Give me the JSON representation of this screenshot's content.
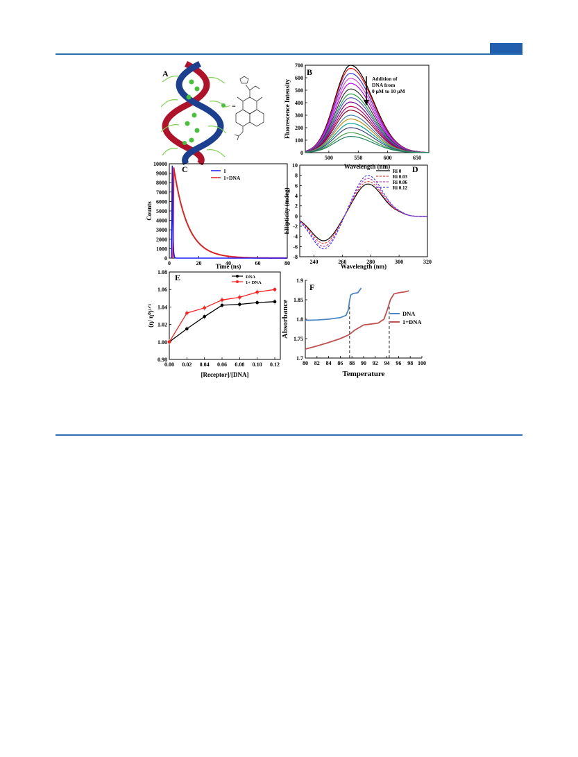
{
  "colors": {
    "rule": "#2a6db3",
    "tab": "#1f5fae"
  },
  "panels": {
    "A": {
      "label": "A",
      "equals": "=",
      "description_icon": "dna-helix-with-ligand-icon"
    },
    "B": {
      "label": "B",
      "annotation": [
        "Addition of",
        "DNA from",
        "0 μM to 10 μM"
      ]
    },
    "C": {
      "label": "C"
    },
    "D": {
      "label": "D"
    },
    "E": {
      "label": "E"
    },
    "F": {
      "label": "F"
    }
  },
  "chart_data": [
    {
      "id": "B",
      "type": "line",
      "xlabel": "Wavelength (nm)",
      "ylabel": "Fluorescence Intensity",
      "xlim": [
        460,
        670
      ],
      "ylim": [
        0,
        700
      ],
      "xticks": [
        500,
        550,
        600,
        650
      ],
      "yticks": [
        0,
        100,
        200,
        300,
        400,
        500,
        600,
        700
      ],
      "peak_x": 537,
      "series": [
        {
          "peak": 700,
          "color": "#000000"
        },
        {
          "peak": 675,
          "color": "#ff0000"
        },
        {
          "peak": 635,
          "color": "#3333ff"
        },
        {
          "peak": 595,
          "color": "#e040e0"
        },
        {
          "peak": 555,
          "color": "#c000ff"
        },
        {
          "peak": 510,
          "color": "#303030"
        },
        {
          "peak": 470,
          "color": "#20a040"
        },
        {
          "peak": 440,
          "color": "#5050c0"
        },
        {
          "peak": 405,
          "color": "#8000a0"
        },
        {
          "peak": 370,
          "color": "#c00060"
        },
        {
          "peak": 340,
          "color": "#900020"
        },
        {
          "peak": 300,
          "color": "#4080c0"
        },
        {
          "peak": 270,
          "color": "#c09000"
        },
        {
          "peak": 235,
          "color": "#00a0a0"
        },
        {
          "peak": 200,
          "color": "#404080"
        },
        {
          "peak": 160,
          "color": "#40a040"
        },
        {
          "peak": 130,
          "color": "#208060"
        }
      ]
    },
    {
      "id": "C",
      "type": "line",
      "xlabel": "Time (ns)",
      "ylabel": "Counts",
      "xlim": [
        0,
        80
      ],
      "ylim": [
        0,
        10000
      ],
      "xticks": [
        0,
        20,
        40,
        60,
        80
      ],
      "yticks": [
        0,
        1000,
        2000,
        3000,
        4000,
        5000,
        6000,
        7000,
        8000,
        9000,
        10000
      ],
      "legend_position": "top-center",
      "series": [
        {
          "name": "1",
          "color": "#1a1aff",
          "decay_start": 2,
          "peak": 9800,
          "tau": 0.35
        },
        {
          "name": "1+DNA",
          "color": "#e02020",
          "decay_start": 3,
          "peak": 9600,
          "tau": 9.5
        }
      ]
    },
    {
      "id": "D",
      "type": "line",
      "xlabel": "Wavelength (nm)",
      "ylabel": "Ellipticity (mdeg)",
      "xlim": [
        230,
        320
      ],
      "ylim": [
        -8,
        10
      ],
      "xticks": [
        240,
        260,
        280,
        300,
        320
      ],
      "yticks": [
        -8,
        -6,
        -4,
        -2,
        0,
        2,
        4,
        6,
        8,
        10
      ],
      "legend_position": "top-right",
      "series": [
        {
          "name": "Ri 0",
          "color": "#000000",
          "dash": "",
          "min": -4.8,
          "max": 6.4
        },
        {
          "name": "Ri 0.03",
          "color": "#ff3030",
          "dash": "3,2",
          "min": -5.3,
          "max": 6.9
        },
        {
          "name": "Ri 0.06",
          "color": "#c040c0",
          "dash": "3,2",
          "min": -5.9,
          "max": 7.5
        },
        {
          "name": "Ri 0.12",
          "color": "#4040ff",
          "dash": "3,2",
          "min": -6.4,
          "max": 8.1
        }
      ]
    },
    {
      "id": "E",
      "type": "line",
      "xlabel": "[Receptor]/[DNA]",
      "ylabel": "(η/ η⁰)¹ᐟ³",
      "xlim": [
        0,
        0.12
      ],
      "ylim": [
        0.98,
        1.08
      ],
      "xticks": [
        "0.00",
        "0.02",
        "0.04",
        "0.06",
        "0.08",
        "0.10",
        "0.12"
      ],
      "yticks": [
        "0.98",
        "1.00",
        "1.02",
        "1.04",
        "1.06",
        "1.08"
      ],
      "legend_position": "top-center",
      "x": [
        0,
        0.02,
        0.04,
        0.06,
        0.08,
        0.1,
        0.12
      ],
      "series": [
        {
          "name": "DNA",
          "color": "#000000",
          "values": [
            1.0,
            1.015,
            1.029,
            1.042,
            1.043,
            1.045,
            1.046
          ]
        },
        {
          "name": "1+ DNA",
          "color": "#ff2020",
          "values": [
            1.0,
            1.033,
            1.039,
            1.048,
            1.051,
            1.057,
            1.06
          ]
        }
      ]
    },
    {
      "id": "F",
      "type": "line",
      "xlabel": "Temperature",
      "ylabel": "Absorbance",
      "xlim": [
        80,
        100
      ],
      "ylim": [
        1.7,
        1.9
      ],
      "xticks": [
        80,
        82,
        84,
        86,
        88,
        90,
        92,
        94,
        96,
        98,
        100
      ],
      "yticks": [
        "1.7",
        "1.75",
        "1.8",
        "1.85",
        "1.9"
      ],
      "legend_position": "right",
      "melting_points": [
        87.6,
        94.4
      ],
      "series": [
        {
          "name": "DNA",
          "color": "#4a86c5",
          "x": [
            80,
            82,
            84,
            86,
            87.0,
            87.4,
            87.6,
            87.8,
            88.2,
            89,
            89.6
          ],
          "values": [
            1.797,
            1.798,
            1.8,
            1.804,
            1.81,
            1.825,
            1.848,
            1.862,
            1.866,
            1.868,
            1.88
          ]
        },
        {
          "name": "1+DNA",
          "color": "#c0504d",
          "x": [
            80,
            82,
            84,
            86,
            87.5,
            88.5,
            90,
            91,
            92.5,
            93.5,
            94.2,
            94.6,
            95.2,
            96,
            97,
            97.8
          ],
          "values": [
            1.723,
            1.731,
            1.74,
            1.75,
            1.76,
            1.772,
            1.785,
            1.787,
            1.79,
            1.8,
            1.83,
            1.85,
            1.865,
            1.868,
            1.87,
            1.873
          ]
        }
      ]
    }
  ]
}
